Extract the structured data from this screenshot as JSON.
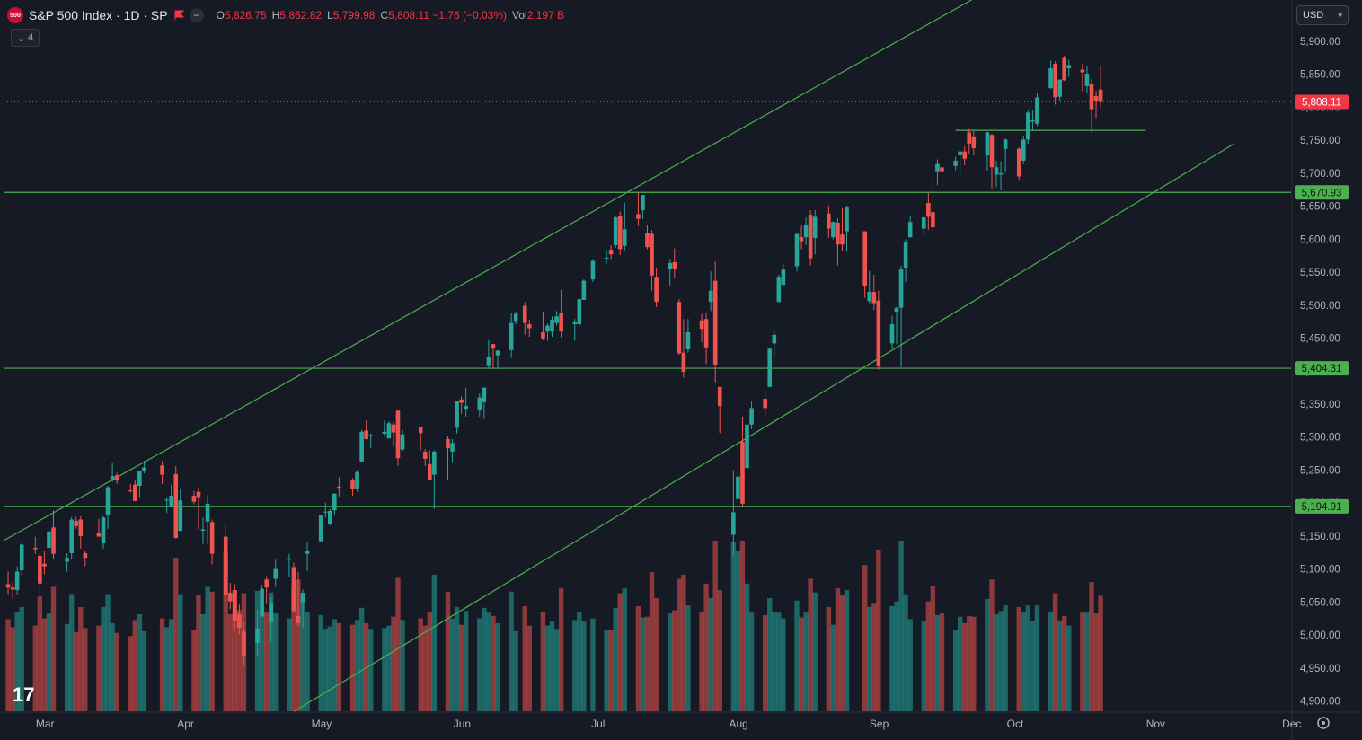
{
  "header": {
    "symbol_badge": "500",
    "title": "S&P 500 Index · 1D · SP",
    "ohlc": [
      {
        "key": "O",
        "value": "5,826.75"
      },
      {
        "key": "H",
        "value": "5,862.82"
      },
      {
        "key": "L",
        "value": "5,799.98"
      },
      {
        "key": "C",
        "value": "5,808.11 −1.76 (−0.03%)"
      },
      {
        "key": "Vol",
        "value": "2.197 B"
      }
    ],
    "indicator_count": "4",
    "currency": "USD"
  },
  "colors": {
    "background": "#161a25",
    "up": "#26a69a",
    "down": "#ef5350",
    "line": "#4caf50",
    "tag_green": "#4caf50",
    "tag_red": "#f23645"
  },
  "icons": [
    "symbol-logo-icon",
    "flag-icon",
    "minus-icon",
    "chevron-down-icon",
    "tradingview-logo-icon",
    "settings-gear-icon"
  ],
  "price_axis": {
    "ticks": [
      4900,
      4950,
      5000,
      5050,
      5100,
      5150,
      5200,
      5250,
      5300,
      5350,
      5400,
      5450,
      5500,
      5550,
      5600,
      5650,
      5700,
      5750,
      5800,
      5850,
      5900
    ],
    "tick_labels": [
      "4,900.00",
      "4,950.00",
      "5,000.00",
      "5,050.00",
      "5,100.00",
      "5,150.00",
      "5,200.00",
      "5,250.00",
      "5,300.00",
      "5,350.00",
      "5,400.00",
      "5,450.00",
      "5,500.00",
      "5,550.00",
      "5,600.00",
      "5,650.00",
      "5,700.00",
      "5,750.00",
      "5,800.00",
      "5,850.00",
      "5,900.00"
    ],
    "last_price_label": "5,808.11",
    "level_labels": [
      "5,670.93",
      "5,404.31",
      "5,194.91"
    ]
  },
  "time_axis": {
    "labels": [
      "Mar",
      "Apr",
      "May",
      "Jun",
      "Jul",
      "Aug",
      "Sep",
      "Oct",
      "Nov",
      "Dec"
    ]
  },
  "chart_data": {
    "type": "candlestick",
    "symbol": "S&P 500 Index",
    "interval": "1D",
    "y_range": [
      4885,
      5925
    ],
    "x_range": [
      "2024-02-26",
      "2024-12-06"
    ],
    "grid": false,
    "last_price": 5808.11,
    "horizontal_levels": [
      5670.93,
      5404.31,
      5194.91
    ],
    "short_level": {
      "from": "2024-09-23",
      "to": "2024-11-04",
      "price": 5765
    },
    "trendlines": [
      {
        "points": [
          [
            "2024-02-26",
            5143
          ],
          [
            "2024-03-28",
            5262
          ]
        ],
        "extended": true
      },
      {
        "points": [
          [
            "2024-05-01",
            4888
          ],
          [
            "2024-09-05",
            5415
          ]
        ],
        "extended": true
      }
    ],
    "candles": [
      [
        "2024-02-27",
        5077,
        5096,
        5062,
        5072
      ],
      [
        "2024-02-28",
        5072,
        5080,
        5056,
        5069
      ],
      [
        "2024-02-29",
        5068,
        5104,
        5061,
        5096
      ],
      [
        "2024-03-01",
        5098,
        5140,
        5091,
        5137
      ],
      [
        "2024-03-04",
        5132,
        5149,
        5123,
        5130
      ],
      [
        "2024-03-05",
        5120,
        5124,
        5062,
        5078
      ],
      [
        "2024-03-06",
        5108,
        5127,
        5092,
        5104
      ],
      [
        "2024-03-07",
        5132,
        5165,
        5124,
        5157
      ],
      [
        "2024-03-08",
        5163,
        5189,
        5115,
        5123
      ],
      [
        "2024-03-11",
        5111,
        5124,
        5096,
        5117
      ],
      [
        "2024-03-12",
        5124,
        5179,
        5114,
        5175
      ],
      [
        "2024-03-13",
        5173,
        5179,
        5161,
        5165
      ],
      [
        "2024-03-14",
        5175,
        5180,
        5131,
        5150
      ],
      [
        "2024-03-15",
        5124,
        5127,
        5104,
        5117
      ],
      [
        "2024-03-18",
        5154,
        5176,
        5150,
        5149
      ],
      [
        "2024-03-19",
        5139,
        5180,
        5131,
        5178
      ],
      [
        "2024-03-20",
        5182,
        5226,
        5161,
        5224
      ],
      [
        "2024-03-21",
        5236,
        5261,
        5232,
        5241
      ],
      [
        "2024-03-22",
        5242,
        5246,
        5229,
        5234
      ],
      [
        "2024-03-25",
        5219,
        5229,
        5216,
        5218
      ],
      [
        "2024-03-26",
        5228,
        5236,
        5203,
        5203
      ],
      [
        "2024-03-27",
        5226,
        5249,
        5209,
        5248
      ],
      [
        "2024-03-28",
        5248,
        5264,
        5245,
        5254
      ],
      [
        "2024-04-01",
        5257,
        5264,
        5229,
        5243
      ],
      [
        "2024-04-02",
        5204,
        5209,
        5185,
        5205
      ],
      [
        "2024-04-03",
        5194,
        5228,
        5194,
        5211
      ],
      [
        "2024-04-04",
        5244,
        5256,
        5146,
        5147
      ],
      [
        "2024-04-05",
        5158,
        5222,
        5157,
        5204
      ],
      [
        "2024-04-08",
        5211,
        5219,
        5198,
        5202
      ],
      [
        "2024-04-09",
        5217,
        5224,
        5160,
        5209
      ],
      [
        "2024-04-10",
        5158,
        5178,
        5138,
        5160
      ],
      [
        "2024-04-11",
        5172,
        5212,
        5138,
        5199
      ],
      [
        "2024-04-12",
        5171,
        5175,
        5107,
        5123
      ],
      [
        "2024-04-15",
        5149,
        5168,
        5052,
        5061
      ],
      [
        "2024-04-16",
        5064,
        5079,
        5039,
        5051
      ],
      [
        "2024-04-17",
        5068,
        5077,
        5007,
        5022
      ],
      [
        "2024-04-18",
        5031,
        5046,
        5001,
        5011
      ],
      [
        "2024-04-19",
        5005,
        5019,
        4953,
        4967
      ],
      [
        "2024-04-22",
        4988,
        5038,
        4969,
        5010
      ],
      [
        "2024-04-23",
        5028,
        5076,
        5027,
        5070
      ],
      [
        "2024-04-24",
        5084,
        5089,
        5047,
        5072
      ],
      [
        "2024-04-25",
        5019,
        5057,
        4990,
        5048
      ],
      [
        "2024-04-26",
        5085,
        5114,
        5073,
        5100
      ],
      [
        "2024-04-29",
        5114,
        5123,
        5088,
        5116
      ],
      [
        "2024-04-30",
        5103,
        5110,
        5035,
        5036
      ],
      [
        "2024-05-01",
        5029,
        5096,
        5013,
        5018
      ],
      [
        "2024-05-02",
        5050,
        5069,
        5011,
        5064
      ],
      [
        "2024-05-03",
        5123,
        5140,
        5097,
        5128
      ],
      [
        "2024-05-06",
        5142,
        5181,
        5142,
        5181
      ],
      [
        "2024-05-07",
        5187,
        5200,
        5178,
        5187
      ],
      [
        "2024-05-08",
        5168,
        5191,
        5166,
        5188
      ],
      [
        "2024-05-09",
        5189,
        5215,
        5181,
        5214
      ],
      [
        "2024-05-10",
        5225,
        5239,
        5210,
        5223
      ],
      [
        "2024-05-13",
        5234,
        5238,
        5211,
        5221
      ],
      [
        "2024-05-14",
        5221,
        5250,
        5217,
        5247
      ],
      [
        "2024-05-15",
        5263,
        5311,
        5263,
        5308
      ],
      [
        "2024-05-16",
        5310,
        5325,
        5296,
        5297
      ],
      [
        "2024-05-17",
        5303,
        5305,
        5283,
        5303
      ],
      [
        "2024-05-20",
        5305,
        5325,
        5302,
        5308
      ],
      [
        "2024-05-21",
        5298,
        5324,
        5298,
        5321
      ],
      [
        "2024-05-22",
        5319,
        5323,
        5286,
        5307
      ],
      [
        "2024-05-23",
        5340,
        5341,
        5256,
        5268
      ],
      [
        "2024-05-24",
        5281,
        5311,
        5278,
        5304
      ],
      [
        "2024-05-28",
        5315,
        5315,
        5280,
        5306
      ],
      [
        "2024-05-29",
        5278,
        5282,
        5256,
        5267
      ],
      [
        "2024-05-30",
        5259,
        5280,
        5237,
        5235
      ],
      [
        "2024-05-31",
        5243,
        5280,
        5191,
        5278
      ],
      [
        "2024-06-03",
        5297,
        5302,
        5234,
        5283
      ],
      [
        "2024-06-04",
        5278,
        5297,
        5262,
        5291
      ],
      [
        "2024-06-05",
        5314,
        5354,
        5305,
        5354
      ],
      [
        "2024-06-06",
        5357,
        5362,
        5335,
        5352
      ],
      [
        "2024-06-07",
        5343,
        5375,
        5331,
        5347
      ],
      [
        "2024-06-10",
        5341,
        5366,
        5331,
        5360
      ],
      [
        "2024-06-11",
        5353,
        5375,
        5327,
        5375
      ],
      [
        "2024-06-12",
        5409,
        5447,
        5405,
        5421
      ],
      [
        "2024-06-13",
        5441,
        5441,
        5403,
        5434
      ],
      [
        "2024-06-14",
        5424,
        5432,
        5403,
        5431
      ],
      [
        "2024-06-17",
        5432,
        5488,
        5420,
        5473
      ],
      [
        "2024-06-18",
        5476,
        5490,
        5471,
        5487
      ],
      [
        "2024-06-20",
        5499,
        5505,
        5455,
        5473
      ],
      [
        "2024-06-21",
        5471,
        5478,
        5452,
        5465
      ],
      [
        "2024-06-24",
        5459,
        5490,
        5447,
        5448
      ],
      [
        "2024-06-25",
        5460,
        5472,
        5446,
        5469
      ],
      [
        "2024-06-26",
        5460,
        5483,
        5452,
        5478
      ],
      [
        "2024-06-27",
        5473,
        5491,
        5469,
        5483
      ],
      [
        "2024-06-28",
        5488,
        5523,
        5451,
        5460
      ],
      [
        "2024-07-01",
        5471,
        5479,
        5446,
        5475
      ],
      [
        "2024-07-02",
        5471,
        5510,
        5468,
        5509
      ],
      [
        "2024-07-03",
        5508,
        5539,
        5508,
        5537
      ],
      [
        "2024-07-05",
        5539,
        5570,
        5535,
        5567
      ],
      [
        "2024-07-08",
        5572,
        5584,
        5563,
        5572
      ],
      [
        "2024-07-09",
        5584,
        5591,
        5570,
        5577
      ],
      [
        "2024-07-10",
        5591,
        5635,
        5587,
        5633
      ],
      [
        "2024-07-11",
        5635,
        5642,
        5576,
        5585
      ],
      [
        "2024-07-12",
        5590,
        5655,
        5583,
        5615
      ],
      [
        "2024-07-15",
        5638,
        5670,
        5620,
        5631
      ],
      [
        "2024-07-16",
        5644,
        5667,
        5631,
        5667
      ],
      [
        "2024-07-17",
        5610,
        5622,
        5585,
        5588
      ],
      [
        "2024-07-18",
        5608,
        5614,
        5522,
        5545
      ],
      [
        "2024-07-19",
        5543,
        5557,
        5497,
        5505
      ],
      [
        "2024-07-22",
        5555,
        5570,
        5529,
        5564
      ],
      [
        "2024-07-23",
        5565,
        5586,
        5541,
        5555
      ],
      [
        "2024-07-24",
        5505,
        5509,
        5425,
        5427
      ],
      [
        "2024-07-25",
        5428,
        5479,
        5390,
        5399
      ],
      [
        "2024-07-26",
        5433,
        5479,
        5428,
        5459
      ],
      [
        "2024-07-29",
        5477,
        5487,
        5444,
        5464
      ],
      [
        "2024-07-30",
        5479,
        5489,
        5411,
        5436
      ],
      [
        "2024-07-31",
        5505,
        5551,
        5491,
        5522
      ],
      [
        "2024-08-01",
        5537,
        5566,
        5383,
        5410
      ],
      [
        "2024-08-02",
        5376,
        5376,
        5306,
        5347
      ],
      [
        "2024-08-05",
        5152,
        5250,
        5120,
        5186
      ],
      [
        "2024-08-06",
        5206,
        5312,
        5193,
        5240
      ],
      [
        "2024-08-07",
        5293,
        5331,
        5195,
        5199
      ],
      [
        "2024-08-08",
        5253,
        5328,
        5250,
        5319
      ],
      [
        "2024-08-09",
        5319,
        5354,
        5312,
        5344
      ],
      [
        "2024-08-12",
        5358,
        5370,
        5331,
        5344
      ],
      [
        "2024-08-13",
        5376,
        5436,
        5376,
        5434
      ],
      [
        "2024-08-14",
        5442,
        5463,
        5420,
        5455
      ],
      [
        "2024-08-15",
        5505,
        5546,
        5504,
        5543
      ],
      [
        "2024-08-16",
        5531,
        5563,
        5528,
        5554
      ],
      [
        "2024-08-19",
        5559,
        5608,
        5551,
        5608
      ],
      [
        "2024-08-20",
        5603,
        5621,
        5585,
        5597
      ],
      [
        "2024-08-21",
        5603,
        5633,
        5591,
        5621
      ],
      [
        "2024-08-22",
        5637,
        5644,
        5560,
        5571
      ],
      [
        "2024-08-23",
        5602,
        5644,
        5577,
        5634
      ],
      [
        "2024-08-26",
        5639,
        5651,
        5602,
        5616
      ],
      [
        "2024-08-27",
        5603,
        5627,
        5600,
        5626
      ],
      [
        "2024-08-28",
        5625,
        5632,
        5560,
        5592
      ],
      [
        "2024-08-29",
        5607,
        5647,
        5583,
        5592
      ],
      [
        "2024-08-30",
        5612,
        5651,
        5581,
        5648
      ],
      [
        "2024-09-03",
        5612,
        5612,
        5511,
        5529
      ],
      [
        "2024-09-04",
        5506,
        5552,
        5503,
        5520
      ],
      [
        "2024-09-05",
        5520,
        5546,
        5493,
        5503
      ],
      [
        "2024-09-06",
        5507,
        5522,
        5402,
        5408
      ],
      [
        "2024-09-09",
        5442,
        5484,
        5434,
        5471
      ],
      [
        "2024-09-10",
        5490,
        5497,
        5441,
        5496
      ],
      [
        "2024-09-11",
        5496,
        5560,
        5406,
        5554
      ],
      [
        "2024-09-12",
        5557,
        5600,
        5535,
        5595
      ],
      [
        "2024-09-13",
        5603,
        5636,
        5602,
        5626
      ],
      [
        "2024-09-16",
        5616,
        5636,
        5605,
        5633
      ],
      [
        "2024-09-17",
        5655,
        5670,
        5614,
        5634
      ],
      [
        "2024-09-18",
        5641,
        5690,
        5615,
        5618
      ],
      [
        "2024-09-19",
        5703,
        5721,
        5682,
        5714
      ],
      [
        "2024-09-20",
        5709,
        5715,
        5674,
        5703
      ],
      [
        "2024-09-23",
        5711,
        5725,
        5705,
        5719
      ],
      [
        "2024-09-24",
        5727,
        5735,
        5698,
        5733
      ],
      [
        "2024-09-25",
        5733,
        5741,
        5712,
        5722
      ],
      [
        "2024-09-26",
        5762,
        5767,
        5729,
        5745
      ],
      [
        "2024-09-27",
        5756,
        5764,
        5727,
        5738
      ],
      [
        "2024-09-30",
        5727,
        5763,
        5704,
        5762
      ],
      [
        "2024-10-01",
        5758,
        5760,
        5677,
        5709
      ],
      [
        "2024-10-02",
        5698,
        5719,
        5679,
        5709
      ],
      [
        "2024-10-03",
        5698,
        5718,
        5674,
        5700
      ],
      [
        "2024-10-04",
        5737,
        5753,
        5702,
        5751
      ],
      [
        "2024-10-07",
        5737,
        5739,
        5690,
        5695
      ],
      [
        "2024-10-08",
        5719,
        5757,
        5714,
        5751
      ],
      [
        "2024-10-09",
        5751,
        5796,
        5745,
        5792
      ],
      [
        "2024-10-10",
        5778,
        5796,
        5764,
        5780
      ],
      [
        "2024-10-11",
        5775,
        5822,
        5771,
        5815
      ],
      [
        "2024-10-14",
        5829,
        5871,
        5828,
        5859
      ],
      [
        "2024-10-15",
        5866,
        5870,
        5804,
        5815
      ],
      [
        "2024-10-16",
        5816,
        5842,
        5810,
        5842
      ],
      [
        "2024-10-17",
        5875,
        5878,
        5840,
        5841
      ],
      [
        "2024-10-18",
        5859,
        5872,
        5846,
        5864
      ],
      [
        "2024-10-21",
        5857,
        5866,
        5824,
        5853
      ],
      [
        "2024-10-22",
        5832,
        5863,
        5821,
        5851
      ],
      [
        "2024-10-23",
        5835,
        5842,
        5762,
        5797
      ],
      [
        "2024-10-24",
        5817,
        5825,
        5784,
        5809
      ],
      [
        "2024-10-25",
        5826.75,
        5862.82,
        5799.98,
        5808.11
      ]
    ]
  }
}
